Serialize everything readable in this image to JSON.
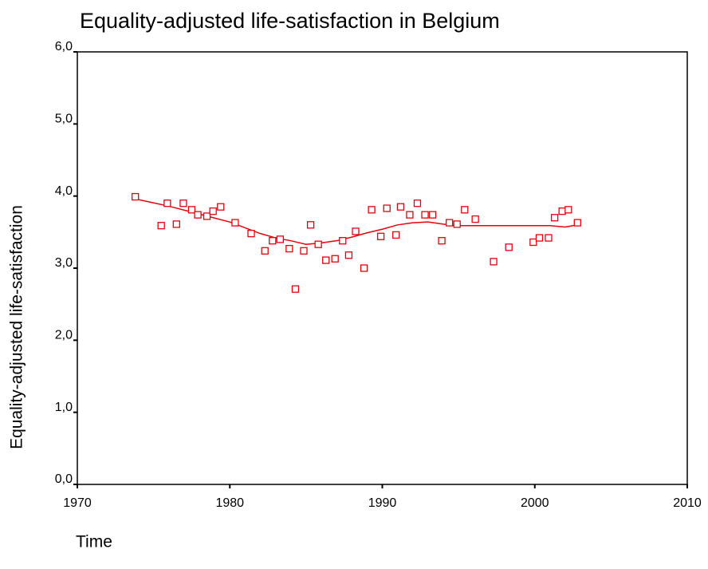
{
  "chart_data": {
    "type": "scatter",
    "title": "Equality-adjusted life-satisfaction in Belgium",
    "x_label": "Time",
    "y_label": "Equality-adjusted life-satisfaction",
    "color": "#e8000b",
    "x": [
      1973.8,
      1975.5,
      1975.9,
      1976.5,
      1976.95,
      1977.5,
      1977.9,
      1978.5,
      1978.9,
      1979.4,
      1980.35,
      1981.4,
      1982.3,
      1982.8,
      1983.3,
      1983.9,
      1984.3,
      1984.85,
      1985.3,
      1985.8,
      1986.3,
      1986.9,
      1987.4,
      1987.8,
      1988.25,
      1988.8,
      1989.3,
      1989.9,
      1990.3,
      1990.9,
      1991.2,
      1991.8,
      1992.3,
      1992.8,
      1993.3,
      1993.9,
      1994.4,
      1994.9,
      1995.4,
      1996.1,
      1997.3,
      1998.3,
      1999.9,
      2000.3,
      2000.9,
      2001.3,
      2001.8,
      2002.2,
      2002.8
    ],
    "values": [
      3.99,
      3.59,
      3.9,
      3.61,
      3.9,
      3.81,
      3.74,
      3.72,
      3.79,
      3.85,
      3.63,
      3.48,
      3.24,
      3.38,
      3.4,
      3.27,
      2.71,
      3.24,
      3.6,
      3.33,
      3.11,
      3.13,
      3.38,
      3.18,
      3.51,
      3.0,
      3.81,
      3.44,
      3.83,
      3.46,
      3.85,
      3.74,
      3.9,
      3.74,
      3.74,
      3.38,
      3.63,
      3.61,
      3.81,
      3.68,
      3.09,
      3.29,
      3.36,
      3.42,
      3.42,
      3.7,
      3.79,
      3.81,
      3.63
    ],
    "fit": {
      "x": [
        1973.8,
        1976,
        1978,
        1980,
        1982,
        1983,
        1984,
        1985,
        1986,
        1987,
        1988,
        1989,
        1990,
        1991,
        1992,
        1993,
        1994,
        1995,
        1998,
        2001,
        2002,
        2002.8
      ],
      "values": [
        3.96,
        3.86,
        3.75,
        3.64,
        3.48,
        3.42,
        3.38,
        3.33,
        3.35,
        3.38,
        3.43,
        3.49,
        3.54,
        3.6,
        3.63,
        3.64,
        3.61,
        3.59,
        3.59,
        3.59,
        3.57,
        3.6
      ]
    },
    "xlim": [
      1970,
      2010
    ],
    "xticks": [
      1970,
      1980,
      1990,
      2000,
      2010
    ],
    "ylim": [
      0,
      6
    ],
    "yticks": [
      {
        "value": 0,
        "label": "0,0"
      },
      {
        "value": 1,
        "label": "1,0"
      },
      {
        "value": 2,
        "label": "2,0"
      },
      {
        "value": 3,
        "label": "3,0"
      },
      {
        "value": 4,
        "label": "4,0"
      },
      {
        "value": 5,
        "label": "5,0"
      },
      {
        "value": 6,
        "label": "6,0"
      }
    ]
  }
}
